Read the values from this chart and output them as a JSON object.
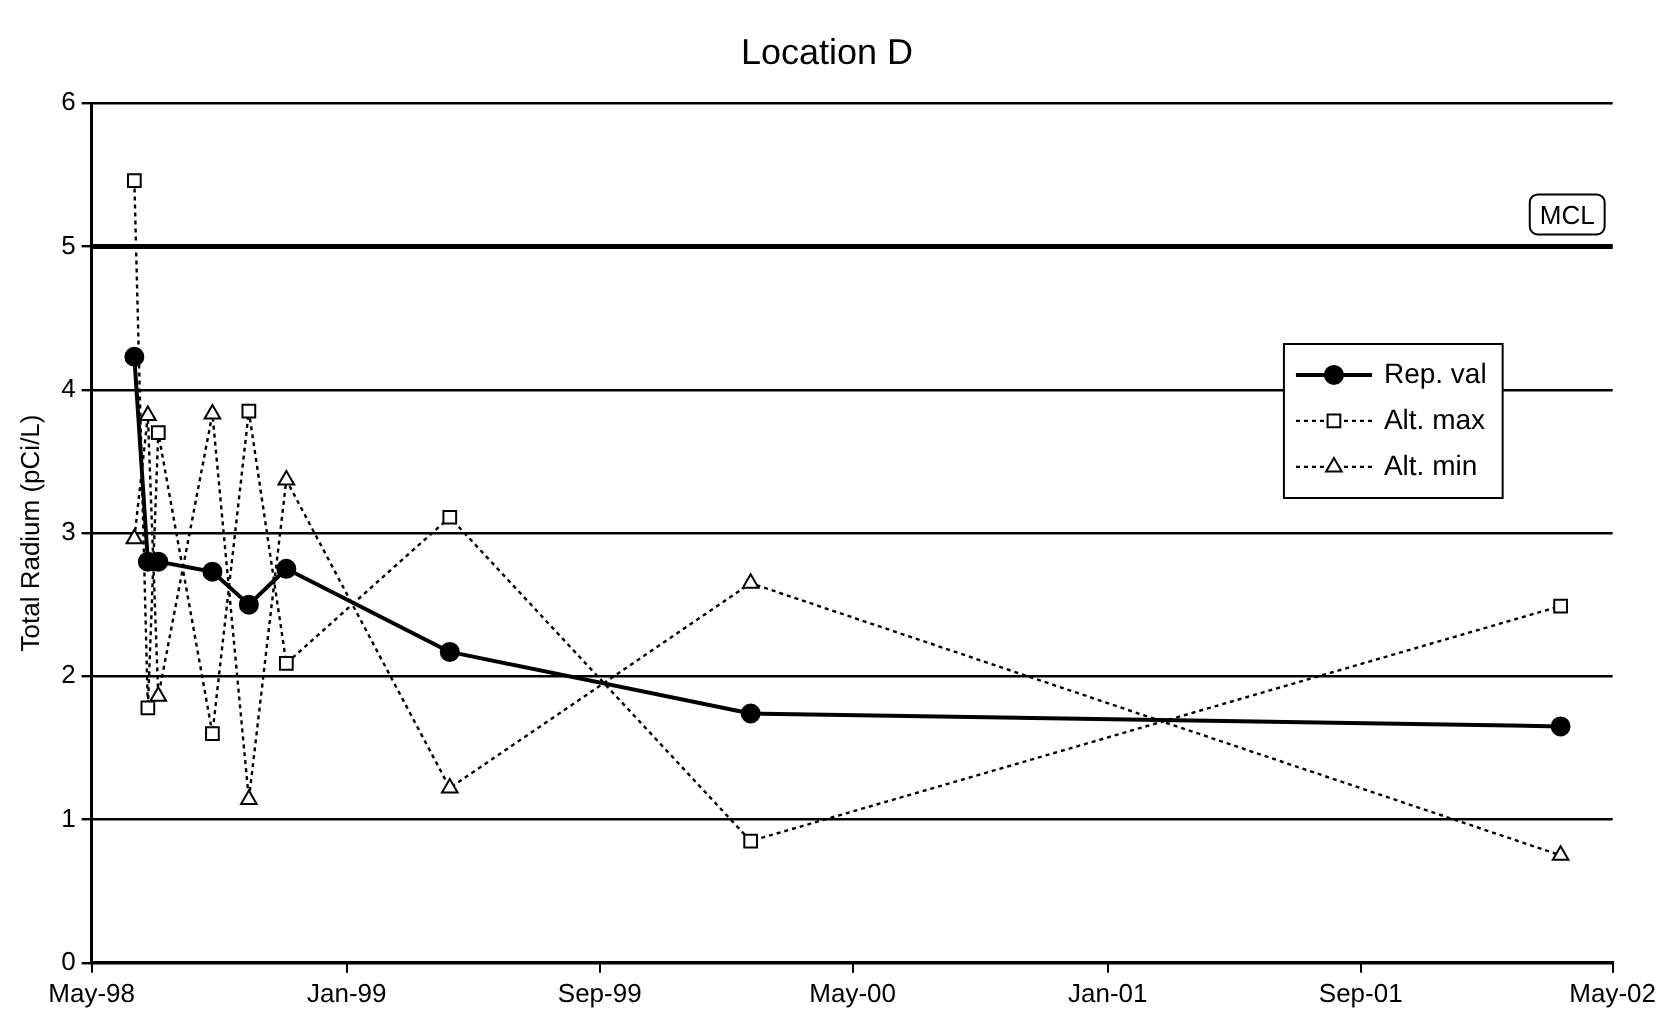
{
  "chart_data": {
    "type": "line",
    "title": "Location D",
    "ylabel": "Total Radium (pCi/L)",
    "ylim": [
      0,
      6
    ],
    "yticks": [
      0,
      1,
      2,
      3,
      4,
      5,
      6
    ],
    "xlim": [
      "1998-05-01",
      "2002-05-01"
    ],
    "xticks": [
      {
        "value": "1998-05-01",
        "label": "May-98"
      },
      {
        "value": "1999-01-01",
        "label": "Jan-99"
      },
      {
        "value": "1999-09-01",
        "label": "Sep-99"
      },
      {
        "value": "2000-05-01",
        "label": "May-00"
      },
      {
        "value": "2001-01-01",
        "label": "Jan-01"
      },
      {
        "value": "2001-09-01",
        "label": "Sep-01"
      },
      {
        "value": "2002-05-01",
        "label": "May-02"
      }
    ],
    "grid": "y",
    "legend": "right",
    "ref_lines": [
      {
        "axis": "y",
        "value": 5,
        "label": "MCL",
        "color": "#000000"
      }
    ],
    "series": [
      {
        "name": "Rep. val",
        "color": "#000000",
        "marker": "circle",
        "line_style": "solid",
        "x": [
          "1998-06-11",
          "1998-06-24",
          "1998-07-04",
          "1998-08-25",
          "1998-09-29",
          "1998-11-04",
          "1999-04-10",
          "2000-01-24",
          "2002-03-12"
        ],
        "values": [
          4.23,
          2.8,
          2.8,
          2.73,
          2.5,
          2.75,
          2.17,
          1.74,
          1.65
        ]
      },
      {
        "name": "Alt. max",
        "color": "#000000",
        "marker": "square",
        "line_style": "dotted",
        "x": [
          "1998-06-11",
          "1998-06-24",
          "1998-07-04",
          "1998-08-25",
          "1998-09-29",
          "1998-11-04",
          "1999-04-10",
          "2000-01-24",
          "2002-03-12"
        ],
        "values": [
          5.46,
          1.78,
          3.7,
          1.6,
          3.85,
          2.09,
          3.11,
          0.85,
          2.49
        ]
      },
      {
        "name": "Alt. min",
        "color": "#000000",
        "marker": "triangle",
        "line_style": "dotted",
        "x": [
          "1998-06-11",
          "1998-06-24",
          "1998-07-04",
          "1998-08-25",
          "1998-09-29",
          "1998-11-04",
          "1999-04-10",
          "2000-01-24",
          "2002-03-12"
        ],
        "values": [
          2.96,
          3.82,
          1.86,
          3.83,
          1.14,
          3.37,
          1.22,
          2.65,
          0.75
        ]
      }
    ]
  }
}
